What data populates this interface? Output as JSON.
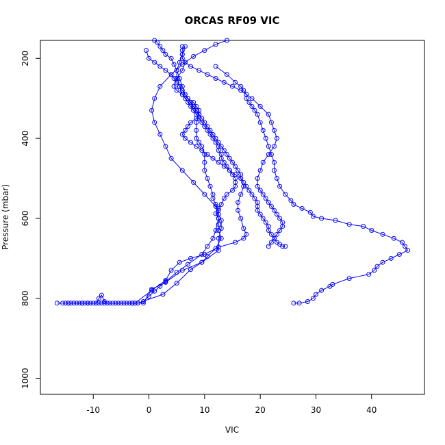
{
  "chart_data": {
    "type": "line",
    "title": "ORCAS RF09 VIC",
    "xlabel": "VIC",
    "ylabel": "Pressure (mbar)",
    "xlim": [
      -19.5,
      49.5
    ],
    "ylim": [
      1040,
      155
    ],
    "y_reversed": true,
    "x_ticks": [
      -10,
      0,
      10,
      20,
      30,
      40
    ],
    "y_ticks": [
      200,
      400,
      600,
      800,
      1000
    ],
    "grid": false,
    "legend": "none",
    "colors": {
      "series": "#0000ff"
    },
    "series": [
      {
        "x": [
          -16.5,
          -15.5,
          -15.0,
          -14.5,
          -14.0,
          -13.5,
          -12.5,
          -12.0,
          -11.5,
          -11.0,
          -10.0,
          -9.5,
          -9.0,
          -8.5,
          -8.0,
          -7.0,
          -6.5,
          -5.5,
          -5.0,
          -4.5,
          -4.0,
          -3.5,
          -3.0,
          -2.5,
          -2.0,
          -1.0,
          0.0,
          1.0,
          2.0,
          3.0,
          5.0,
          7.0,
          9.5,
          10.5,
          11.5,
          12.0,
          12.5,
          12.0,
          10.0,
          8.0,
          6.0,
          4.0,
          3.0,
          2.0,
          1.0,
          0.5,
          1.0,
          2.0,
          4.0,
          6.0,
          8.0,
          10.0,
          12.0,
          14.0
        ],
        "y": [
          812,
          812,
          812,
          812,
          812,
          812,
          812,
          812,
          812,
          812,
          812,
          812,
          812,
          812,
          812,
          812,
          812,
          812,
          812,
          812,
          812,
          812,
          812,
          812,
          812,
          808,
          795,
          782,
          770,
          758,
          735,
          715,
          690,
          670,
          650,
          630,
          600,
          570,
          540,
          510,
          480,
          450,
          420,
          390,
          360,
          330,
          300,
          270,
          240,
          215,
          195,
          180,
          165,
          155
        ]
      },
      {
        "x": [
          -14.5,
          -13.0,
          -12.0,
          -11.0,
          -10.5,
          -9.5,
          -9.0,
          -8.5,
          -8.0,
          -7.5,
          -6.0,
          -3.0,
          -1.0,
          0.5,
          3.0,
          6.0,
          9.5,
          12.5,
          12.5,
          13.0,
          13.0,
          12.5,
          12.5,
          12.0,
          11.5,
          11.5,
          11.0,
          10.5,
          10.0,
          10.0,
          10.0,
          9.5,
          9.0,
          8.5,
          8.5,
          8.5,
          9.0,
          8.0,
          7.5,
          6.5,
          6.0,
          5.5,
          5.0,
          4.5,
          4.0,
          3.0,
          2.5,
          2.0,
          1.5,
          1.0
        ],
        "y": [
          812,
          812,
          812,
          812,
          812,
          812,
          800,
          792,
          808,
          812,
          812,
          812,
          812,
          777,
          760,
          730,
          710,
          680,
          650,
          625,
          605,
          590,
          580,
          565,
          550,
          540,
          520,
          500,
          480,
          460,
          440,
          420,
          410,
          400,
          380,
          360,
          340,
          330,
          310,
          290,
          270,
          250,
          230,
          215,
          200,
          190,
          180,
          170,
          160,
          155
        ]
      },
      {
        "x": [
          -3.0,
          -2.0,
          2.5,
          5.0,
          7.5,
          9.5,
          10.5,
          12.0,
          13.0,
          12.5,
          12.5,
          12.5,
          12.0,
          12.5,
          13.0,
          13.5,
          14.0,
          15.0,
          15.5,
          15.5,
          15.5,
          15.0,
          14.5,
          14.0,
          13.5,
          13.0,
          13.0,
          12.5,
          12.5,
          12.0,
          11.5,
          11.0,
          10.5,
          10.0,
          9.5,
          9.0,
          8.5,
          8.0,
          7.5,
          7.0,
          6.5,
          6.0,
          5.5,
          5.0,
          5.0,
          5.5,
          6.0,
          6.5
        ],
        "y": [
          812,
          812,
          790,
          762,
          728,
          710,
          695,
          675,
          650,
          630,
          615,
          600,
          588,
          575,
          565,
          550,
          540,
          530,
          520,
          510,
          500,
          490,
          480,
          470,
          460,
          450,
          440,
          430,
          420,
          410,
          400,
          390,
          380,
          370,
          360,
          350,
          340,
          330,
          320,
          310,
          300,
          290,
          270,
          250,
          230,
          210,
          190,
          170
        ]
      },
      {
        "x": [
          -2.5,
          0.5,
          3.0,
          4.0,
          5.5,
          7.5,
          10.0,
          12.5,
          15.5,
          17.0,
          17.5,
          17.0,
          16.5,
          16.0,
          16.0,
          16.5,
          17.0,
          16.5,
          15.5,
          14.5,
          13.5,
          12.5,
          11.5,
          10.5,
          9.5,
          8.5,
          7.5,
          6.5,
          6.0,
          6.5,
          7.0,
          7.5,
          8.5,
          9.0,
          9.0,
          8.5,
          8.0,
          7.0,
          6.0,
          5.0,
          4.5,
          5.0,
          6.0,
          6.5
        ],
        "y": [
          812,
          780,
          755,
          730,
          710,
          700,
          690,
          672,
          660,
          650,
          640,
          625,
          600,
          580,
          560,
          540,
          520,
          500,
          490,
          480,
          470,
          460,
          450,
          440,
          430,
          420,
          410,
          400,
          390,
          380,
          370,
          360,
          350,
          340,
          330,
          320,
          310,
          300,
          290,
          280,
          270,
          250,
          230,
          210
        ]
      },
      {
        "x": [
          26.0,
          27.0,
          28.5,
          29.5,
          30.0,
          31.0,
          32.5,
          33.0,
          36.0,
          39.5,
          40.5,
          41.0,
          42.0,
          43.5,
          45.0,
          46.5,
          46.0,
          45.5,
          44.0,
          42.0,
          40.0,
          38.5,
          36.0,
          33.5,
          31.0,
          29.5,
          29.0,
          27.5,
          26.0,
          25.5,
          24.5,
          23.5,
          23.0,
          22.5,
          22.5,
          22.0,
          21.5,
          21.0,
          20.5,
          20.0,
          19.5,
          19.0,
          18.5,
          18.0,
          17.5,
          17.5,
          17.0,
          16.5,
          15.5,
          14.0,
          12.0
        ],
        "y": [
          812,
          812,
          808,
          800,
          790,
          780,
          770,
          765,
          750,
          740,
          730,
          720,
          710,
          700,
          690,
          680,
          670,
          660,
          650,
          640,
          630,
          620,
          615,
          605,
          600,
          595,
          585,
          575,
          565,
          555,
          540,
          520,
          500,
          480,
          460,
          440,
          420,
          400,
          380,
          360,
          340,
          330,
          320,
          310,
          300,
          290,
          280,
          270,
          260,
          240,
          220
        ]
      },
      {
        "x": [
          24.5,
          24.0,
          23.5,
          23.0,
          22.5,
          22.0,
          21.5,
          21.5,
          21.0,
          20.5,
          20.0,
          19.5,
          19.5,
          19.5,
          19.0,
          18.5,
          18.0,
          17.5,
          17.0,
          16.5,
          16.5,
          16.0,
          15.5,
          15.0,
          14.5,
          14.0,
          13.5,
          13.0,
          12.5,
          12.0,
          11.5,
          11.0,
          10.5,
          10.0,
          9.5,
          9.0,
          8.5,
          8.0,
          7.5,
          7.0,
          6.5,
          6.0,
          5.5,
          5.0,
          4.5,
          4.0,
          3.0,
          2.0,
          1.0,
          0.0,
          -0.5
        ],
        "y": [
          670,
          670,
          665,
          660,
          650,
          640,
          630,
          620,
          610,
          600,
          590,
          580,
          570,
          560,
          550,
          540,
          530,
          520,
          510,
          500,
          490,
          480,
          470,
          460,
          450,
          440,
          430,
          420,
          410,
          400,
          390,
          380,
          370,
          360,
          350,
          340,
          330,
          320,
          310,
          300,
          290,
          280,
          270,
          260,
          250,
          240,
          230,
          220,
          210,
          200,
          180
        ]
      },
      {
        "x": [
          21.5,
          22.0,
          22.5,
          23.0,
          23.5,
          24.0,
          24.0,
          23.5,
          23.0,
          22.5,
          22.0,
          21.5,
          21.0,
          20.5,
          20.0,
          19.5,
          19.5,
          20.0,
          20.5,
          21.5,
          22.5,
          23.0,
          22.5,
          22.0,
          21.5,
          20.0,
          18.5,
          16.5,
          15.0,
          13.5,
          12.0,
          10.5,
          9.0,
          7.5,
          6.5,
          6.0,
          6.0,
          6.0,
          6.0
        ],
        "y": [
          670,
          660,
          650,
          640,
          630,
          620,
          610,
          600,
          590,
          580,
          570,
          560,
          550,
          540,
          530,
          520,
          500,
          480,
          460,
          440,
          420,
          400,
          380,
          360,
          340,
          320,
          300,
          280,
          270,
          260,
          250,
          240,
          230,
          220,
          210,
          200,
          190,
          180,
          170
        ]
      }
    ]
  }
}
